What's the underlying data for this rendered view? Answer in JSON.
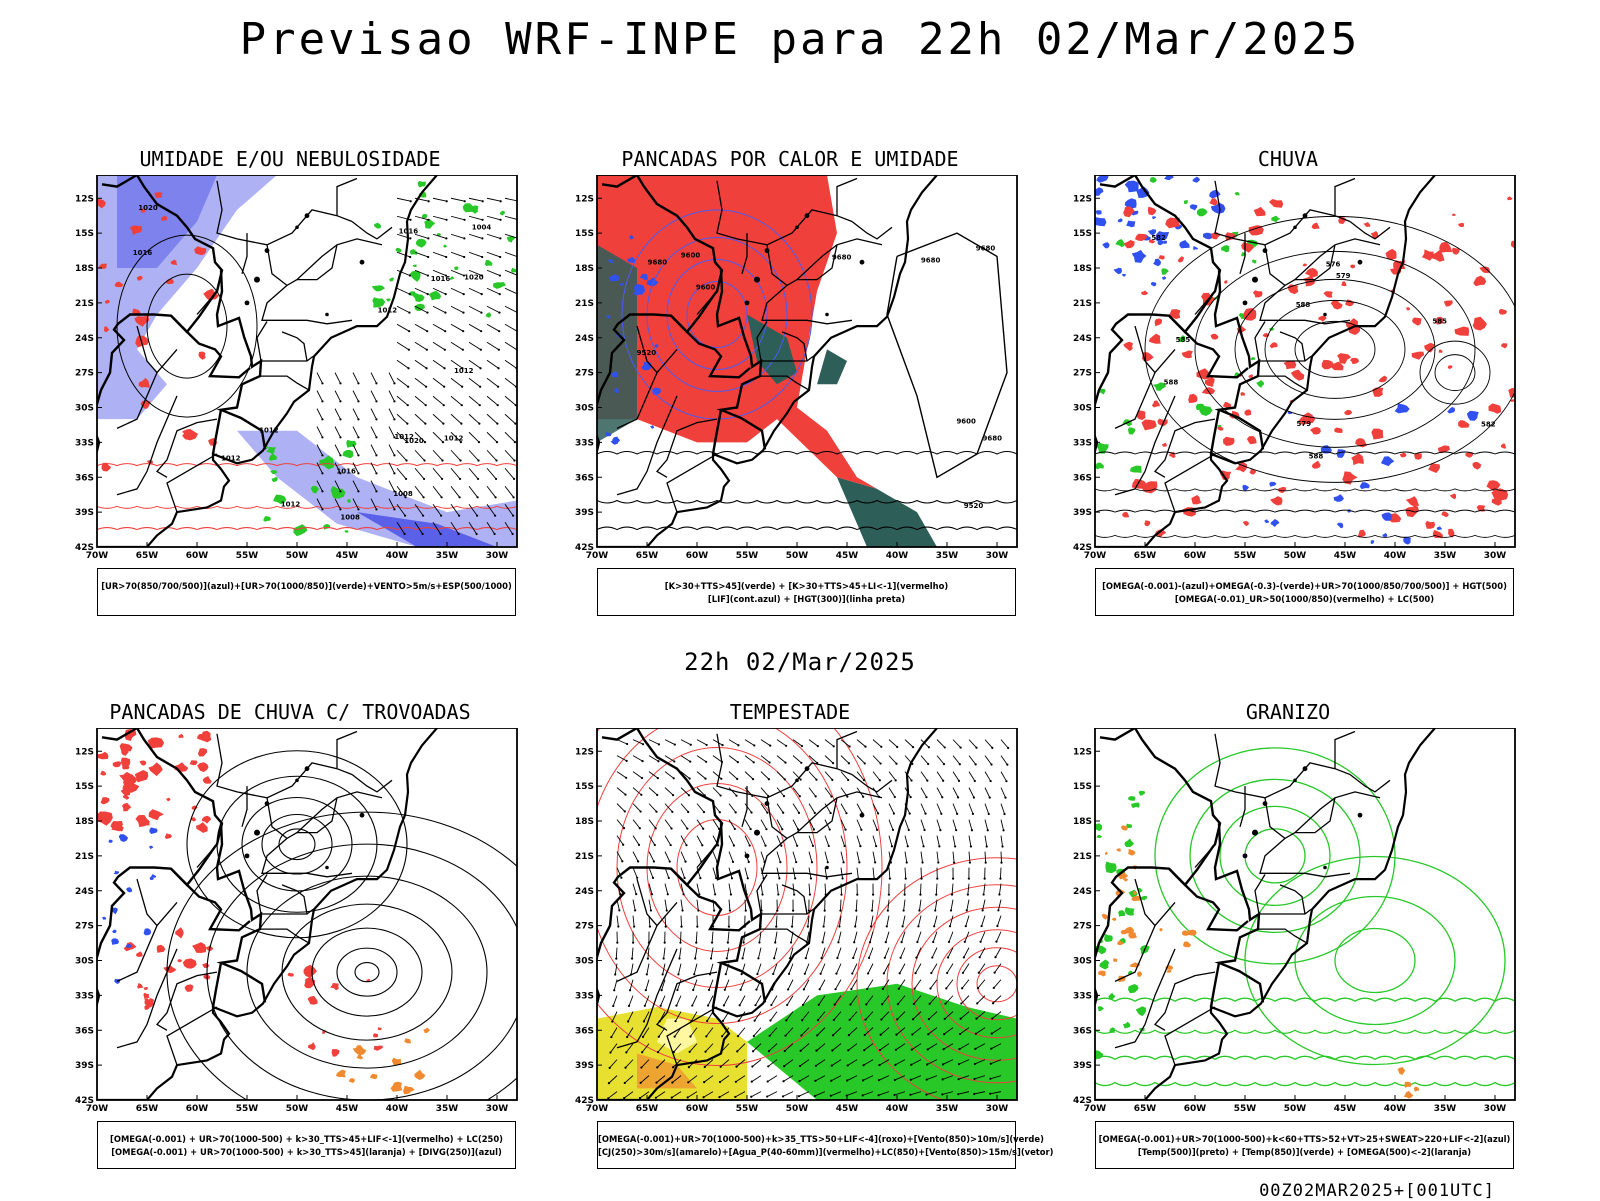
{
  "header": {
    "title": "Previsao WRF-INPE  para 22h 02/Mar/2025"
  },
  "subtitle": "22h 02/Mar/2025",
  "footer": "00Z02MAR2025+[001UTC]",
  "axes": {
    "lat_labels": [
      "12S",
      "15S",
      "18S",
      "21S",
      "24S",
      "27S",
      "30S",
      "33S",
      "36S",
      "39S",
      "42S"
    ],
    "lon_labels": [
      "70W",
      "65W",
      "60W",
      "55W",
      "50W",
      "45W",
      "40W",
      "35W",
      "30W"
    ]
  },
  "colors": {
    "red": "#f0403c",
    "blue": "#3050f0",
    "green": "#28c828",
    "lavender": "#aeb2f4",
    "darkteal": "#2e5e58",
    "yellow": "#e8e030",
    "orange": "#f08a30"
  },
  "panels": [
    {
      "title": "UMIDADE E/OU NEBULOSIDADE",
      "legend": [
        "[UR>70(850/700/500)](azul)+[UR>70(1000/850)](verde)+VENTO>5m/s+ESP(500/1000)"
      ]
    },
    {
      "title": "PANCADAS POR CALOR E UMIDADE",
      "legend": [
        "[K>30+TTS>45](verde)  +  [K>30+TTS>45+LI<-1](vermelho)",
        "[LIF](cont.azul)  +  [HGT(300)](linha preta)"
      ]
    },
    {
      "title": "CHUVA",
      "legend": [
        "[OMEGA(-0.001)-(azul)+OMEGA(-0.3)-(verde)+UR>70(1000/850/700/500)]  +  HGT(500)",
        "[OMEGA(-0.01)_UR>50(1000/850)(vermelho)  +  LC(500)"
      ]
    },
    {
      "title": "PANCADAS DE CHUVA C/ TROVOADAS",
      "legend": [
        "[OMEGA(-0.001)  +  UR>70(1000-500)  +  k>30_TTS>45+LIF<-1](vermelho)  +  LC(250)",
        "[OMEGA(-0.001)  +  UR>70(1000-500)  +  k>30_TTS>45](laranja)  +  [DIVG(250)](azul)"
      ]
    },
    {
      "title": "TEMPESTADE",
      "legend": [
        "[OMEGA(-0.001)+UR>70(1000-500)+k>35_TTS>50+LIF<-4](roxo)+[Vento(850)>10m/s](verde)",
        "[CJ(250)>30m/s](amarelo)+[Agua_P(40-60mm)](vermelho)+LC(850)+[Vento(850)>15m/s](vetor)"
      ]
    },
    {
      "title": "GRANIZO",
      "legend": [
        "[OMEGA(-0.001)+UR>70(1000-500)+k<60+TTS>52+VT>25+SWEAT>220+LIF<-2](azul)",
        "[Temp(500)](preto)  +  [Temp(850)](verde)  +  [OMEGA(500)<-2](laranja)"
      ]
    }
  ],
  "contour_labels": {
    "p1": [
      "1012",
      "1012",
      "1016",
      "1008",
      "1012",
      "1016",
      "1020",
      "1020",
      "1016",
      "1016",
      "1020",
      "1012",
      "1012",
      "1012",
      "1008",
      "1004",
      "1012"
    ],
    "p2": [
      "9680",
      "9680",
      "9680",
      "9600",
      "9600",
      "9520",
      "9680",
      "9600",
      "9520",
      "9680"
    ],
    "p3": [
      "585",
      "588",
      "588",
      "585",
      "582",
      "579",
      "576",
      "588",
      "582",
      "579"
    ]
  }
}
